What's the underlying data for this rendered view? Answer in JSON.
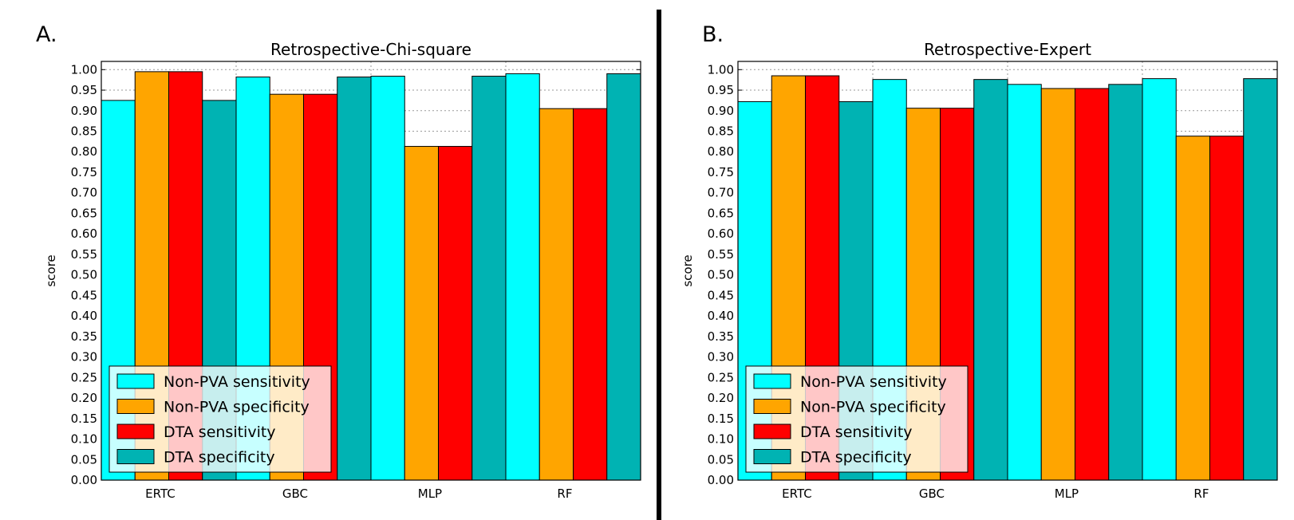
{
  "chart_data": [
    {
      "type": "bar",
      "panel_label": "A.",
      "title": "Retrospective-Chi-square",
      "xlabel": "",
      "ylabel": "score",
      "ylim": [
        0,
        1.02
      ],
      "yticks": [
        "0.00",
        "0.05",
        "0.10",
        "0.15",
        "0.20",
        "0.25",
        "0.30",
        "0.35",
        "0.40",
        "0.45",
        "0.50",
        "0.55",
        "0.60",
        "0.65",
        "0.70",
        "0.75",
        "0.80",
        "0.85",
        "0.90",
        "0.95",
        "1.00"
      ],
      "categories": [
        "ERTC",
        "GBC",
        "MLP",
        "RF"
      ],
      "series": [
        {
          "name": "Non-PVA sensitivity",
          "color": "#00ffff",
          "values": [
            0.925,
            0.982,
            0.984,
            0.99
          ]
        },
        {
          "name": "Non-PVA specificity",
          "color": "#ffa500",
          "values": [
            0.995,
            0.94,
            0.813,
            0.905
          ]
        },
        {
          "name": "DTA sensitivity",
          "color": "#ff0000",
          "values": [
            0.995,
            0.94,
            0.813,
            0.905
          ]
        },
        {
          "name": "DTA specificity",
          "color": "#00b3b3",
          "values": [
            0.925,
            0.982,
            0.984,
            0.99
          ]
        }
      ],
      "grid": true,
      "legend_position": "lower-left"
    },
    {
      "type": "bar",
      "panel_label": "B.",
      "title": "Retrospective-Expert",
      "xlabel": "",
      "ylabel": "score",
      "ylim": [
        0,
        1.02
      ],
      "yticks": [
        "0.00",
        "0.05",
        "0.10",
        "0.15",
        "0.20",
        "0.25",
        "0.30",
        "0.35",
        "0.40",
        "0.45",
        "0.50",
        "0.55",
        "0.60",
        "0.65",
        "0.70",
        "0.75",
        "0.80",
        "0.85",
        "0.90",
        "0.95",
        "1.00"
      ],
      "categories": [
        "ERTC",
        "GBC",
        "MLP",
        "RF"
      ],
      "series": [
        {
          "name": "Non-PVA sensitivity",
          "color": "#00ffff",
          "values": [
            0.922,
            0.976,
            0.964,
            0.978
          ]
        },
        {
          "name": "Non-PVA specificity",
          "color": "#ffa500",
          "values": [
            0.985,
            0.906,
            0.954,
            0.838
          ]
        },
        {
          "name": "DTA sensitivity",
          "color": "#ff0000",
          "values": [
            0.985,
            0.906,
            0.954,
            0.838
          ]
        },
        {
          "name": "DTA specificity",
          "color": "#00b3b3",
          "values": [
            0.922,
            0.976,
            0.964,
            0.978
          ]
        }
      ],
      "grid": true,
      "legend_position": "lower-left"
    }
  ]
}
